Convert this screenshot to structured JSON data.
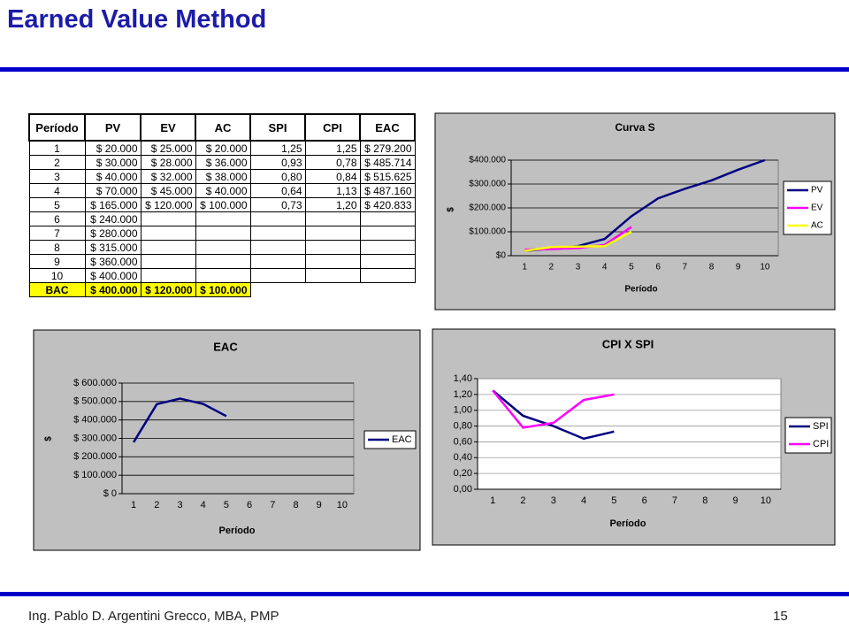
{
  "header": {
    "title": "Earned Value Method"
  },
  "table": {
    "headers": [
      "Período",
      "PV",
      "EV",
      "AC",
      "SPI",
      "CPI",
      "EAC"
    ],
    "rows": [
      [
        "1",
        "$ 20.000",
        "$ 25.000",
        "$ 20.000",
        "1,25",
        "1,25",
        "$ 279.200"
      ],
      [
        "2",
        "$ 30.000",
        "$ 28.000",
        "$ 36.000",
        "0,93",
        "0,78",
        "$ 485.714"
      ],
      [
        "3",
        "$ 40.000",
        "$ 32.000",
        "$ 38.000",
        "0,80",
        "0,84",
        "$ 515.625"
      ],
      [
        "4",
        "$ 70.000",
        "$ 45.000",
        "$ 40.000",
        "0,64",
        "1,13",
        "$ 487.160"
      ],
      [
        "5",
        "$ 165.000",
        "$ 120.000",
        "$ 100.000",
        "0,73",
        "1,20",
        "$ 420.833"
      ],
      [
        "6",
        "$ 240.000"
      ],
      [
        "7",
        "$ 280.000"
      ],
      [
        "8",
        "$ 315.000"
      ],
      [
        "9",
        "$ 360.000"
      ],
      [
        "10",
        "$ 400.000"
      ],
      [
        "BAC",
        "$ 400.000",
        "$ 120.000",
        "$ 100.000"
      ]
    ]
  },
  "chart_data": [
    {
      "type": "line",
      "title": "Curva S",
      "xlabel": "Período",
      "ylabel": "$",
      "categories": [
        "1",
        "2",
        "3",
        "4",
        "5",
        "6",
        "7",
        "8",
        "9",
        "10"
      ],
      "series": [
        {
          "name": "PV",
          "color": "#000080",
          "values": [
            20000,
            30000,
            40000,
            70000,
            165000,
            240000,
            280000,
            315000,
            360000,
            400000
          ]
        },
        {
          "name": "EV",
          "color": "#ff00ff",
          "values": [
            25000,
            28000,
            32000,
            45000,
            120000,
            null,
            null,
            null,
            null,
            null
          ]
        },
        {
          "name": "AC",
          "color": "#ffff00",
          "values": [
            20000,
            36000,
            38000,
            40000,
            100000,
            null,
            null,
            null,
            null,
            null
          ]
        }
      ],
      "ylim": [
        0,
        400000
      ],
      "yticks": [
        {
          "value": 0,
          "label": "$0"
        },
        {
          "value": 100000,
          "label": "$100.000"
        },
        {
          "value": 200000,
          "label": "$200.000"
        },
        {
          "value": 300000,
          "label": "$300.000"
        },
        {
          "value": 400000,
          "label": "$400.000"
        }
      ],
      "grid": true,
      "legend": "right"
    },
    {
      "type": "line",
      "title": "EAC",
      "xlabel": "Período",
      "ylabel": "$",
      "categories": [
        "1",
        "2",
        "3",
        "4",
        "5",
        "6",
        "7",
        "8",
        "9",
        "10"
      ],
      "series": [
        {
          "name": "EAC",
          "color": "#000080",
          "values": [
            279200,
            485714,
            515625,
            487160,
            420833,
            null,
            null,
            null,
            null,
            null
          ]
        }
      ],
      "ylim": [
        0,
        600000
      ],
      "yticks": [
        {
          "value": 0,
          "label": "$ 0"
        },
        {
          "value": 100000,
          "label": "$ 100.000"
        },
        {
          "value": 200000,
          "label": "$ 200.000"
        },
        {
          "value": 300000,
          "label": "$ 300.000"
        },
        {
          "value": 400000,
          "label": "$ 400.000"
        },
        {
          "value": 500000,
          "label": "$ 500.000"
        },
        {
          "value": 600000,
          "label": "$ 600.000"
        }
      ],
      "grid": true,
      "legend": "right"
    },
    {
      "type": "line",
      "title": "CPI X SPI",
      "xlabel": "Período",
      "categories": [
        "1",
        "2",
        "3",
        "4",
        "5",
        "6",
        "7",
        "8",
        "9",
        "10"
      ],
      "series": [
        {
          "name": "SPI",
          "color": "#000080",
          "values": [
            1.25,
            0.93,
            0.8,
            0.64,
            0.73,
            null,
            null,
            null,
            null,
            null
          ]
        },
        {
          "name": "CPI",
          "color": "#ff00ff",
          "values": [
            1.25,
            0.78,
            0.84,
            1.13,
            1.2,
            null,
            null,
            null,
            null,
            null
          ]
        }
      ],
      "ylim": [
        0,
        1.4
      ],
      "yticks": [
        {
          "value": 0,
          "label": "0,00"
        },
        {
          "value": 0.2,
          "label": "0,20"
        },
        {
          "value": 0.4,
          "label": "0,40"
        },
        {
          "value": 0.6,
          "label": "0,60"
        },
        {
          "value": 0.8,
          "label": "0,80"
        },
        {
          "value": 1,
          "label": "1,00"
        },
        {
          "value": 1.2,
          "label": "1,20"
        },
        {
          "value": 1.4,
          "label": "1,40"
        }
      ],
      "grid": true,
      "legend": "right"
    }
  ],
  "footer": {
    "author": "Ing. Pablo D. Argentini Grecco, MBA, PMP",
    "page": "15"
  }
}
